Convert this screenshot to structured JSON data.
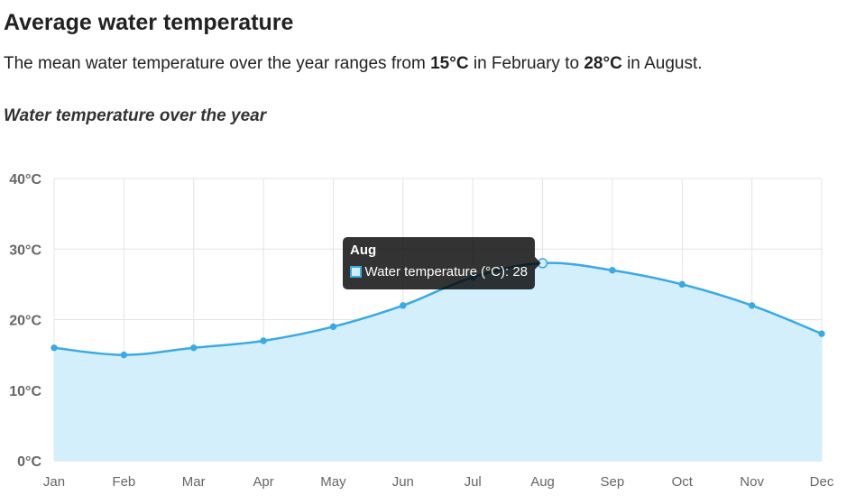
{
  "header": {
    "title": "Average water temperature",
    "summary_prefix": "The mean water temperature over the year ranges from ",
    "summary_min": "15°C",
    "summary_mid": " in February to ",
    "summary_max": "28°C",
    "summary_suffix": " in August."
  },
  "chart_data": {
    "type": "area",
    "title": "Water temperature over the year",
    "categories": [
      "Jan",
      "Feb",
      "Mar",
      "Apr",
      "May",
      "Jun",
      "Jul",
      "Aug",
      "Sep",
      "Oct",
      "Nov",
      "Dec"
    ],
    "series": [
      {
        "name": "Water temperature (°C)",
        "values": [
          16,
          15,
          16,
          17,
          19,
          22,
          26,
          28,
          27,
          25,
          22,
          18
        ]
      }
    ],
    "ylim": [
      0,
      40
    ],
    "yticks": [
      0,
      10,
      20,
      30,
      40
    ],
    "ytick_suffix": "°C",
    "grid": true,
    "colors": {
      "line": "#3aaae6",
      "fill": "#d2eefc",
      "grid": "#e4e4e4"
    },
    "tooltip": {
      "title": "Aug",
      "label": "Water temperature (°C): 28",
      "index": 7
    }
  }
}
